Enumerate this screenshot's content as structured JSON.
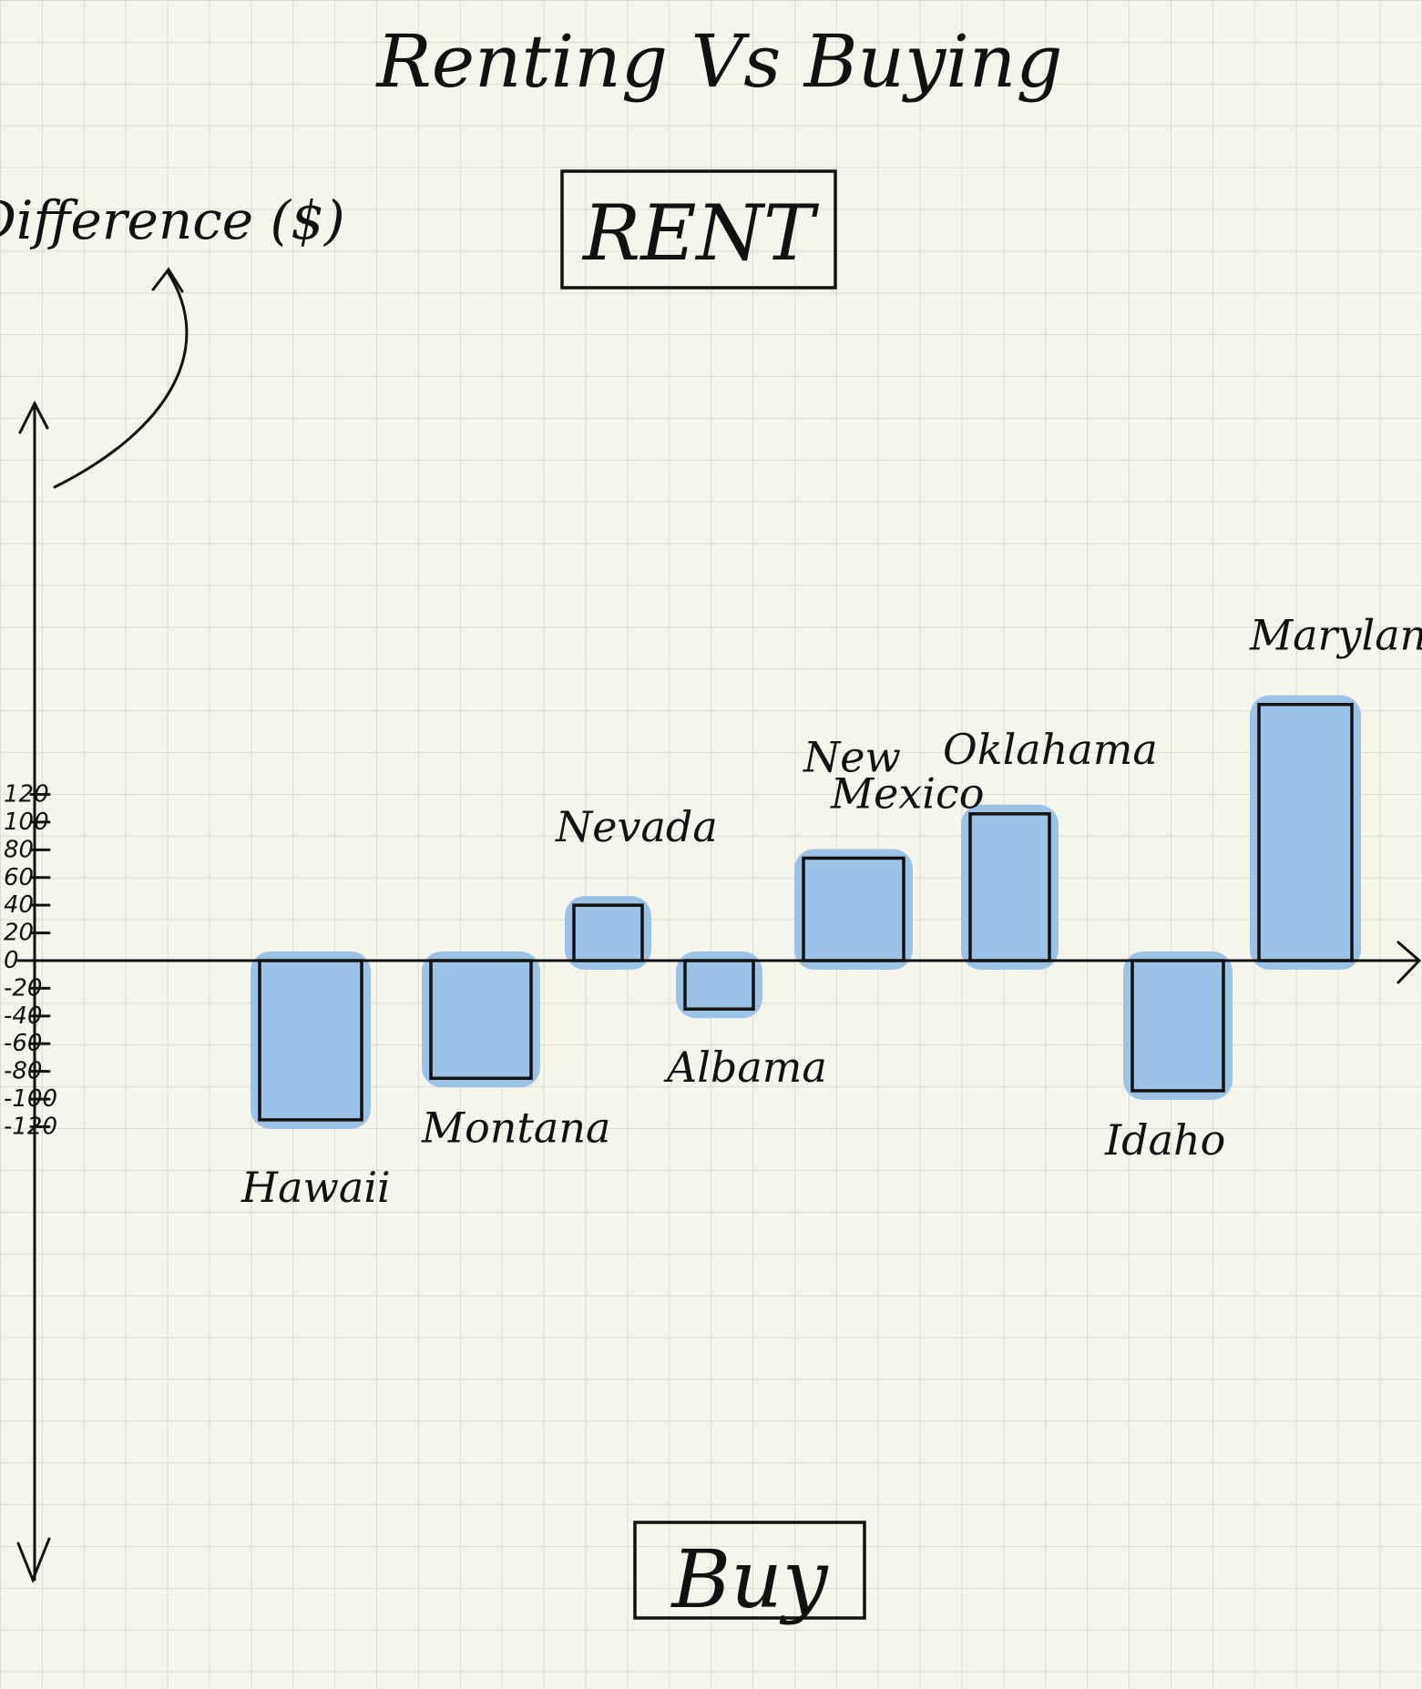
{
  "chart_data": {
    "type": "bar",
    "title": "Renting Vs Buying",
    "ylabel": "Difference ($)",
    "top_label": "RENT",
    "bottom_label": "Buy",
    "categories": [
      "Hawaii",
      "Montana",
      "Nevada",
      "Albama",
      "New Mexico",
      "Oklahama",
      "Idaho",
      "Maryland"
    ],
    "values": [
      -115,
      -85,
      40,
      -35,
      74,
      106,
      -94,
      185
    ],
    "yticks": [
      120,
      100,
      80,
      60,
      40,
      20,
      0,
      -20,
      -40,
      -60,
      -80,
      -100,
      -120
    ],
    "ytick_labels": [
      "120",
      "100",
      "80",
      "60",
      "40",
      "20",
      "0",
      "-20",
      "-40",
      "-60",
      "-80",
      "-100",
      "-120"
    ],
    "ylim": [
      -170,
      200
    ],
    "bar_fill": "#9cc3e6",
    "bar_outline": "#111111",
    "grid": true
  }
}
